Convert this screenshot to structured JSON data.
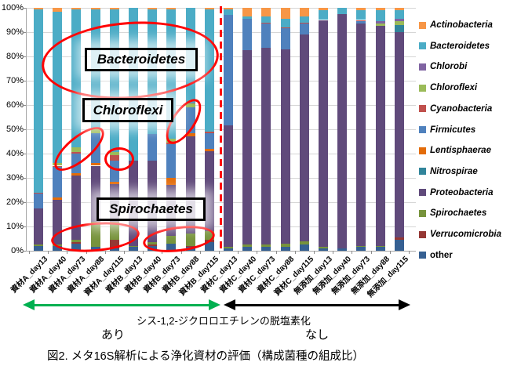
{
  "chart_data": {
    "type": "bar",
    "stacked": true,
    "percent": true,
    "title": "",
    "xlabel": "",
    "ylabel": "",
    "ylim": [
      0,
      100
    ],
    "grid": true,
    "legend_position": "right",
    "y_ticks": [
      "0%",
      "10%",
      "20%",
      "30%",
      "40%",
      "50%",
      "60%",
      "70%",
      "80%",
      "90%",
      "100%"
    ],
    "categories": [
      "資材A_day13",
      "資材A_day40",
      "資材A_day73",
      "資材A_day88",
      "資材A_day115",
      "資材B_day13",
      "資材B_day40",
      "資材B_day73",
      "資材B_day88",
      "資材B_day115",
      "資材C_day13",
      "資材C_day40",
      "資材C_day73",
      "資材C_day88",
      "資材C_day115",
      "無添加_day13",
      "無添加_day40",
      "無添加_day73",
      "無添加_day88",
      "無添加_day115"
    ],
    "colors": {
      "Actinobacteria": "#F79646",
      "Bacteroidetes": "#4BACC6",
      "Chlorobi": "#8064A2",
      "Chloroflexi": "#9BBB59",
      "Cyanobacteria": "#C0504D",
      "Firmicutes": "#4F81BD",
      "Lentisphaerae": "#E36C09",
      "Nitrospirae": "#31859B",
      "Proteobacteria": "#604A7B",
      "Spirochaetes": "#77933C",
      "Verrucomicrobia": "#953734",
      "other": "#366092"
    },
    "legend_order": [
      "Actinobacteria",
      "Bacteroidetes",
      "Chlorobi",
      "Chloroflexi",
      "Cyanobacteria",
      "Firmicutes",
      "Lentisphaerae",
      "Nitrospirae",
      "Proteobacteria",
      "Spirochaetes",
      "Verrucomicrobia",
      "other"
    ],
    "stack_order_bottom_to_top": [
      "other",
      "Verrucomicrobia",
      "Spirochaetes",
      "Proteobacteria",
      "Nitrospirae",
      "Lentisphaerae",
      "Firmicutes",
      "Cyanobacteria",
      "Chloroflexi",
      "Chlorobi",
      "Bacteroidetes",
      "Actinobacteria"
    ],
    "series": [
      {
        "name": "other",
        "values": [
          2,
          2,
          3,
          1.5,
          1,
          1.5,
          2,
          3,
          1.5,
          3.5,
          1,
          1.5,
          1.5,
          1.5,
          2.5,
          1,
          1,
          1.5,
          1.5,
          4.5
        ]
      },
      {
        "name": "Verrucomicrobia",
        "values": [
          0,
          0,
          0.5,
          0,
          3.5,
          0,
          0.5,
          0,
          0.5,
          1,
          0,
          0,
          0,
          0,
          0,
          0,
          0,
          0,
          0,
          1
        ]
      },
      {
        "name": "Spirochaetes",
        "values": [
          0.5,
          0.5,
          1,
          10.5,
          7.5,
          0.5,
          1,
          3,
          5,
          3.5,
          0.5,
          1,
          1,
          1.5,
          1.5,
          0.5,
          0,
          0.5,
          0.5,
          0
        ]
      },
      {
        "name": "Proteobacteria",
        "values": [
          15,
          18.5,
          26.5,
          23,
          15.5,
          35,
          33.5,
          21,
          40,
          33,
          50,
          80,
          81,
          80,
          85,
          93.5,
          96.5,
          91.5,
          90.5,
          84.5
        ]
      },
      {
        "name": "Nitrospirae",
        "values": [
          0,
          0,
          0,
          0,
          0,
          0,
          0,
          0,
          0,
          0,
          0,
          0,
          0,
          0,
          0,
          0,
          0,
          0,
          0,
          3
        ]
      },
      {
        "name": "Lentisphaerae",
        "values": [
          0,
          1,
          1,
          1,
          1,
          0,
          0,
          3,
          1.5,
          1,
          0,
          0,
          0,
          0,
          0,
          0,
          0,
          0,
          0,
          0
        ]
      },
      {
        "name": "Firmicutes",
        "values": [
          6,
          12.5,
          8,
          12.5,
          8.5,
          0,
          11,
          14,
          10.5,
          6.5,
          45.5,
          13,
          10,
          8.5,
          4.5,
          0,
          0,
          1,
          0,
          0
        ]
      },
      {
        "name": "Cyanobacteria",
        "values": [
          0.5,
          0.5,
          0.5,
          0,
          2.5,
          0,
          0,
          0.5,
          0,
          0.5,
          0,
          0,
          0.5,
          0.5,
          0.5,
          0,
          0,
          0.5,
          0,
          0
        ]
      },
      {
        "name": "Chloroflexi",
        "values": [
          0,
          1,
          2,
          2,
          1,
          0,
          0,
          1.5,
          1.5,
          0,
          0,
          0,
          0,
          0,
          0,
          0,
          0,
          0,
          1,
          1.5
        ]
      },
      {
        "name": "Chlorobi",
        "values": [
          0,
          0,
          0,
          0,
          0,
          0,
          0,
          0,
          0.5,
          0,
          0,
          0,
          0,
          0,
          0,
          0,
          0,
          0,
          1,
          1
        ]
      },
      {
        "name": "Bacteroidetes",
        "values": [
          75.5,
          62.5,
          57,
          49,
          59,
          63,
          51.5,
          53.5,
          39,
          50.5,
          2.5,
          1,
          2.5,
          3.5,
          2.5,
          4,
          2.5,
          4,
          4.5,
          3.5
        ]
      },
      {
        "name": "Actinobacteria",
        "values": [
          0.5,
          1.5,
          0.5,
          0.5,
          0.5,
          0,
          0.5,
          0.5,
          0,
          0.5,
          0.5,
          3.5,
          3.5,
          4.5,
          3.5,
          1,
          0,
          1,
          1,
          1
        ]
      }
    ],
    "divider": {
      "after_category_index": 9,
      "color": "#FF0000",
      "style": "dashed"
    }
  },
  "annotations": {
    "bacteroidetes_label": "Bacteroidetes",
    "chloroflexi_label": "Chloroflexi",
    "spirochaetes_label": "Spirochaetes"
  },
  "footer": {
    "process_label": "シス-1,2-ジクロロエチレンの脱塩素化",
    "with_label": "あり",
    "without_label": "なし",
    "with_arrow_color": "#00B050",
    "without_arrow_color": "#000000",
    "caption": "図2. メタ16S解析による浄化資材の評価（構成菌種の組成比）"
  }
}
